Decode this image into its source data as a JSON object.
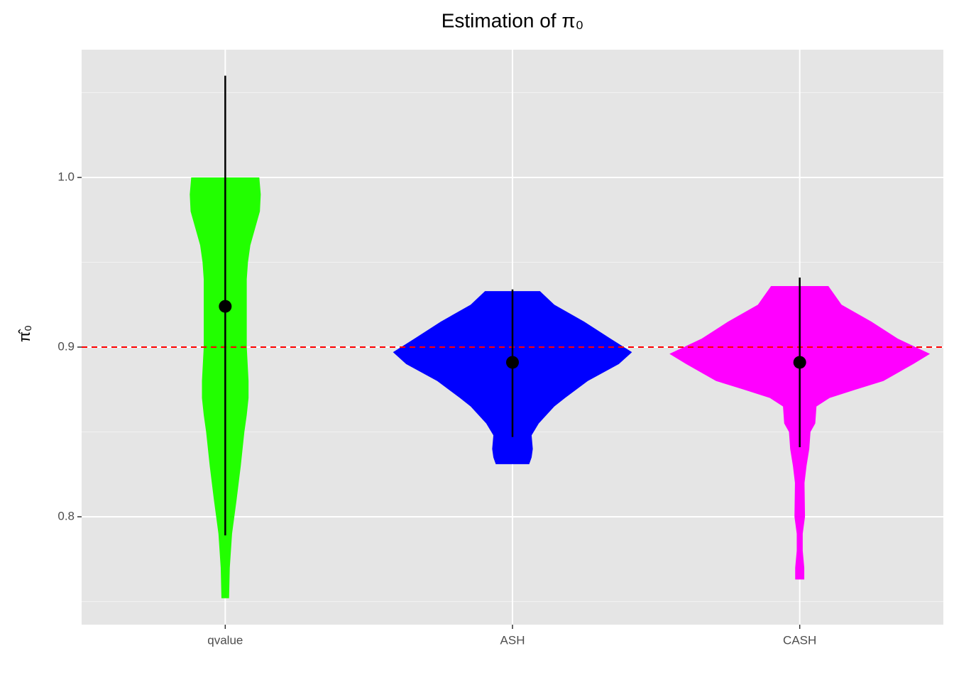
{
  "chart_data": {
    "type": "violin",
    "title": "Estimation of π₀",
    "y_label": "π̂₀",
    "categories": [
      "qvalue",
      "ASH",
      "CASH"
    ],
    "series": [
      {
        "name": "qvalue",
        "color": "#22ff00",
        "y": [
          1.0,
          0.99,
          0.98,
          0.97,
          0.96,
          0.95,
          0.94,
          0.92,
          0.9,
          0.88,
          0.87,
          0.86,
          0.85,
          0.83,
          0.81,
          0.79,
          0.77,
          0.752
        ],
        "density": [
          0.285,
          0.297,
          0.29,
          0.25,
          0.21,
          0.19,
          0.18,
          0.18,
          0.18,
          0.195,
          0.195,
          0.18,
          0.16,
          0.13,
          0.095,
          0.057,
          0.038,
          0.032
        ],
        "mean": 0.924,
        "lower": 0.789,
        "upper": 1.06
      },
      {
        "name": "ASH",
        "color": "#0000ff",
        "y": [
          0.933,
          0.925,
          0.915,
          0.905,
          0.897,
          0.89,
          0.88,
          0.87,
          0.865,
          0.855,
          0.848,
          0.84,
          0.835,
          0.831
        ],
        "density": [
          0.23,
          0.35,
          0.6,
          0.82,
          1.0,
          0.89,
          0.63,
          0.44,
          0.35,
          0.22,
          0.16,
          0.17,
          0.16,
          0.14
        ],
        "mean": 0.891,
        "lower": 0.847,
        "upper": 0.934
      },
      {
        "name": "CASH",
        "color": "#ff00ff",
        "y": [
          0.936,
          0.925,
          0.915,
          0.905,
          0.896,
          0.89,
          0.88,
          0.875,
          0.87,
          0.865,
          0.855,
          0.85,
          0.84,
          0.83,
          0.82,
          0.8,
          0.79,
          0.78,
          0.77,
          0.763
        ],
        "density": [
          0.24,
          0.35,
          0.6,
          0.82,
          1.09,
          0.95,
          0.7,
          0.47,
          0.25,
          0.14,
          0.13,
          0.09,
          0.08,
          0.057,
          0.04,
          0.044,
          0.025,
          0.025,
          0.038,
          0.038
        ],
        "mean": 0.891,
        "lower": 0.841,
        "upper": 0.941
      }
    ],
    "hline": 0.9,
    "hline_color": "#ff0000",
    "ylim": [
      0.7364,
      1.0753
    ],
    "yticks": [
      0.8,
      0.9,
      {
        "value": 1,
        "label": "1.0"
      }
    ],
    "yminor": [
      0.75,
      0.85,
      0.95,
      1.05
    ],
    "grid": true
  }
}
